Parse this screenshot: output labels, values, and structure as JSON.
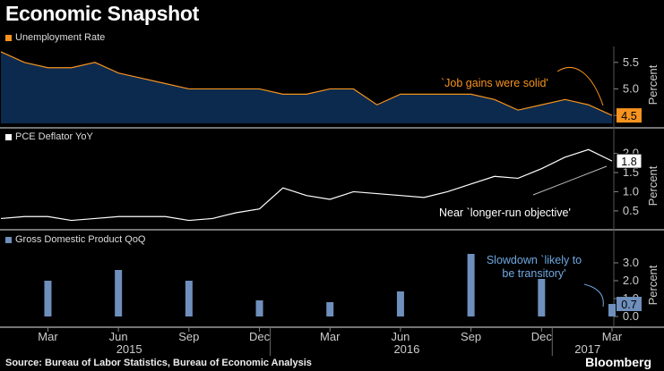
{
  "title": "Economic Snapshot",
  "source": "Source: Bureau of Labor Statistics, Bureau of Economic Analysis",
  "brand": "Bloomberg",
  "colors": {
    "background": "#000000",
    "unemployment_line": "#f7931e",
    "unemployment_fill": "#0c2a4d",
    "pce_line": "#ffffff",
    "gdp_bar": "#6f8fbc",
    "separator": "#9a9a9a",
    "axis_text": "#cccccc",
    "annotation_orange": "#f7931e",
    "annotation_white": "#ffffff",
    "annotation_blue": "#6fa8e0"
  },
  "x_axis": {
    "months": [
      "Mar",
      "Jun",
      "Sep",
      "Dec",
      "Mar",
      "Jun",
      "Sep",
      "Dec",
      "Mar"
    ],
    "years": [
      "2015",
      "2016",
      "2017"
    ]
  },
  "chart_data": [
    {
      "type": "area",
      "label": "Unemployment Rate",
      "ylabel": "Percent",
      "yticks": [
        4.5,
        5.0,
        5.5
      ],
      "ylim": [
        4.35,
        5.8
      ],
      "x": [
        "2015-01",
        "2015-02",
        "2015-03",
        "2015-04",
        "2015-05",
        "2015-06",
        "2015-07",
        "2015-08",
        "2015-09",
        "2015-10",
        "2015-11",
        "2015-12",
        "2016-01",
        "2016-02",
        "2016-03",
        "2016-04",
        "2016-05",
        "2016-06",
        "2016-07",
        "2016-08",
        "2016-09",
        "2016-10",
        "2016-11",
        "2016-12",
        "2017-01",
        "2017-02",
        "2017-03"
      ],
      "values": [
        5.7,
        5.5,
        5.4,
        5.4,
        5.5,
        5.3,
        5.2,
        5.1,
        5.0,
        5.0,
        5.0,
        5.0,
        4.9,
        4.9,
        5.0,
        5.0,
        4.7,
        4.9,
        4.9,
        4.9,
        4.9,
        4.8,
        4.6,
        4.7,
        4.8,
        4.7,
        4.5
      ],
      "last_value_label": "4.5",
      "annotation": "`Job gains were solid'"
    },
    {
      "type": "line",
      "label": "PCE Deflator YoY",
      "ylabel": "Percent",
      "yticks": [
        0.5,
        1.0,
        1.5,
        2.0
      ],
      "ylim": [
        0.1,
        2.2
      ],
      "x": [
        "2015-01",
        "2015-02",
        "2015-03",
        "2015-04",
        "2015-05",
        "2015-06",
        "2015-07",
        "2015-08",
        "2015-09",
        "2015-10",
        "2015-11",
        "2015-12",
        "2016-01",
        "2016-02",
        "2016-03",
        "2016-04",
        "2016-05",
        "2016-06",
        "2016-07",
        "2016-08",
        "2016-09",
        "2016-10",
        "2016-11",
        "2016-12",
        "2017-01",
        "2017-02",
        "2017-03"
      ],
      "values": [
        0.3,
        0.35,
        0.35,
        0.25,
        0.3,
        0.35,
        0.35,
        0.35,
        0.25,
        0.3,
        0.45,
        0.55,
        1.1,
        0.9,
        0.8,
        1.0,
        0.95,
        0.9,
        0.85,
        1.0,
        1.2,
        1.4,
        1.35,
        1.6,
        1.9,
        2.1,
        1.8
      ],
      "last_value_label": "1.8",
      "annotation": "Near `longer-run objective'"
    },
    {
      "type": "bar",
      "label": "Gross Domestic Product QoQ",
      "ylabel": "Percent",
      "yticks": [
        0.0,
        1.0,
        2.0,
        3.0
      ],
      "ylim": [
        -0.4,
        3.9
      ],
      "x": [
        "2015-03",
        "2015-06",
        "2015-09",
        "2015-12",
        "2016-03",
        "2016-06",
        "2016-09",
        "2016-12",
        "2017-03"
      ],
      "values": [
        2.0,
        2.6,
        2.0,
        0.9,
        0.8,
        1.4,
        3.5,
        2.1,
        0.7
      ],
      "last_value_label": "0.7",
      "annotation": "Slowdown `likely to be transitory'"
    }
  ]
}
